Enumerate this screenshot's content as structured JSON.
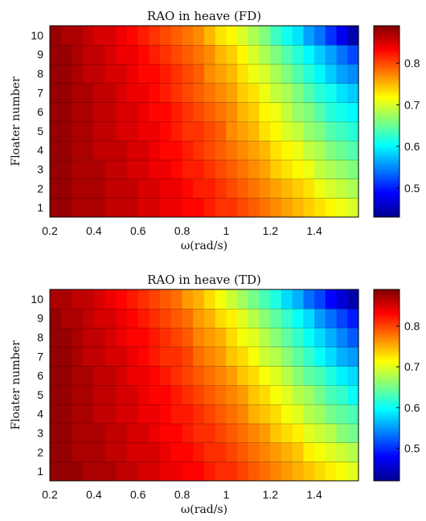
{
  "chart_data": [
    {
      "type": "heatmap",
      "title": "RAO in heave (FD)",
      "xlabel": "ω(rad/s)",
      "ylabel": "Floater number",
      "xlim": [
        0.2,
        1.6
      ],
      "ylim": [
        0.5,
        10.5
      ],
      "xticks": [
        0.2,
        0.4,
        0.6,
        0.8,
        1,
        1.2,
        1.4
      ],
      "xtick_labels": [
        "0.2",
        "0.4",
        "0.6",
        "0.8",
        "1",
        "1.2",
        "1.4"
      ],
      "y_categories": [
        "1",
        "2",
        "3",
        "4",
        "5",
        "6",
        "7",
        "8",
        "9",
        "10"
      ],
      "colorbar": {
        "range": [
          0.43,
          0.89
        ],
        "ticks": [
          0.5,
          0.6,
          0.7,
          0.8
        ],
        "tick_labels": [
          "0.5",
          "0.6",
          "0.7",
          "0.8"
        ],
        "colormap": "jet"
      },
      "x": [
        0.2,
        0.25,
        0.3,
        0.35,
        0.4,
        0.45,
        0.5,
        0.55,
        0.6,
        0.65,
        0.7,
        0.75,
        0.8,
        0.85,
        0.9,
        0.95,
        1.0,
        1.05,
        1.1,
        1.15,
        1.2,
        1.25,
        1.3,
        1.35,
        1.4,
        1.45,
        1.5,
        1.55
      ],
      "rows": [
        {
          "floater": "1",
          "values": [
            0.88,
            0.88,
            0.87,
            0.87,
            0.87,
            0.86,
            0.86,
            0.86,
            0.85,
            0.85,
            0.84,
            0.84,
            0.83,
            0.83,
            0.82,
            0.81,
            0.81,
            0.8,
            0.79,
            0.78,
            0.77,
            0.76,
            0.75,
            0.74,
            0.73,
            0.72,
            0.71,
            0.7
          ]
        },
        {
          "floater": "2",
          "values": [
            0.88,
            0.88,
            0.87,
            0.87,
            0.87,
            0.86,
            0.86,
            0.86,
            0.85,
            0.85,
            0.84,
            0.84,
            0.83,
            0.82,
            0.82,
            0.81,
            0.8,
            0.79,
            0.78,
            0.77,
            0.76,
            0.75,
            0.74,
            0.73,
            0.71,
            0.7,
            0.69,
            0.68
          ]
        },
        {
          "floater": "3",
          "values": [
            0.88,
            0.88,
            0.87,
            0.87,
            0.87,
            0.86,
            0.86,
            0.85,
            0.85,
            0.84,
            0.84,
            0.83,
            0.82,
            0.82,
            0.81,
            0.8,
            0.79,
            0.78,
            0.77,
            0.76,
            0.74,
            0.73,
            0.72,
            0.71,
            0.69,
            0.68,
            0.67,
            0.66
          ]
        },
        {
          "floater": "4",
          "values": [
            0.88,
            0.88,
            0.87,
            0.87,
            0.86,
            0.86,
            0.86,
            0.85,
            0.85,
            0.84,
            0.83,
            0.83,
            0.82,
            0.81,
            0.8,
            0.79,
            0.78,
            0.77,
            0.76,
            0.75,
            0.73,
            0.72,
            0.71,
            0.69,
            0.68,
            0.66,
            0.65,
            0.64
          ]
        },
        {
          "floater": "5",
          "values": [
            0.88,
            0.88,
            0.87,
            0.87,
            0.86,
            0.86,
            0.85,
            0.85,
            0.84,
            0.84,
            0.83,
            0.82,
            0.81,
            0.81,
            0.8,
            0.79,
            0.77,
            0.76,
            0.75,
            0.73,
            0.72,
            0.7,
            0.69,
            0.67,
            0.66,
            0.64,
            0.63,
            0.62
          ]
        },
        {
          "floater": "6",
          "values": [
            0.88,
            0.88,
            0.87,
            0.87,
            0.86,
            0.86,
            0.85,
            0.85,
            0.84,
            0.83,
            0.83,
            0.82,
            0.81,
            0.8,
            0.79,
            0.78,
            0.77,
            0.75,
            0.74,
            0.72,
            0.71,
            0.69,
            0.67,
            0.66,
            0.64,
            0.62,
            0.61,
            0.6
          ]
        },
        {
          "floater": "7",
          "values": [
            0.88,
            0.88,
            0.87,
            0.87,
            0.86,
            0.86,
            0.85,
            0.84,
            0.84,
            0.83,
            0.82,
            0.81,
            0.8,
            0.79,
            0.78,
            0.77,
            0.76,
            0.74,
            0.73,
            0.71,
            0.69,
            0.68,
            0.66,
            0.64,
            0.62,
            0.61,
            0.59,
            0.58
          ]
        },
        {
          "floater": "8",
          "values": [
            0.88,
            0.88,
            0.87,
            0.86,
            0.86,
            0.85,
            0.85,
            0.84,
            0.83,
            0.83,
            0.82,
            0.81,
            0.8,
            0.79,
            0.77,
            0.76,
            0.75,
            0.73,
            0.71,
            0.7,
            0.68,
            0.66,
            0.64,
            0.62,
            0.6,
            0.58,
            0.56,
            0.55
          ]
        },
        {
          "floater": "9",
          "values": [
            0.88,
            0.88,
            0.87,
            0.86,
            0.86,
            0.85,
            0.84,
            0.84,
            0.83,
            0.82,
            0.81,
            0.8,
            0.79,
            0.78,
            0.77,
            0.75,
            0.74,
            0.72,
            0.7,
            0.68,
            0.66,
            0.64,
            0.62,
            0.6,
            0.58,
            0.56,
            0.54,
            0.52
          ]
        },
        {
          "floater": "10",
          "values": [
            0.88,
            0.87,
            0.87,
            0.86,
            0.85,
            0.85,
            0.84,
            0.83,
            0.82,
            0.81,
            0.8,
            0.79,
            0.78,
            0.77,
            0.75,
            0.73,
            0.72,
            0.7,
            0.68,
            0.66,
            0.63,
            0.61,
            0.59,
            0.56,
            0.54,
            0.51,
            0.48,
            0.45
          ]
        }
      ]
    },
    {
      "type": "heatmap",
      "title": "RAO in heave (TD)",
      "xlabel": "ω(rad/s)",
      "ylabel": "Floater number",
      "xlim": [
        0.2,
        1.6
      ],
      "ylim": [
        0.5,
        10.5
      ],
      "xticks": [
        0.2,
        0.4,
        0.6,
        0.8,
        1,
        1.2,
        1.4
      ],
      "xtick_labels": [
        "0.2",
        "0.4",
        "0.6",
        "0.8",
        "1",
        "1.2",
        "1.4"
      ],
      "y_categories": [
        "1",
        "2",
        "3",
        "4",
        "5",
        "6",
        "7",
        "8",
        "9",
        "10"
      ],
      "colorbar": {
        "range": [
          0.42,
          0.89
        ],
        "ticks": [
          0.5,
          0.6,
          0.7,
          0.8
        ],
        "tick_labels": [
          "0.5",
          "0.6",
          "0.7",
          "0.8"
        ],
        "colormap": "jet"
      },
      "x": [
        0.2,
        0.25,
        0.3,
        0.35,
        0.4,
        0.45,
        0.5,
        0.55,
        0.6,
        0.65,
        0.7,
        0.75,
        0.8,
        0.85,
        0.9,
        0.95,
        1.0,
        1.05,
        1.1,
        1.15,
        1.2,
        1.25,
        1.3,
        1.35,
        1.4,
        1.45,
        1.5,
        1.55
      ],
      "rows": [
        {
          "floater": "1",
          "values": [
            0.88,
            0.88,
            0.88,
            0.87,
            0.87,
            0.87,
            0.86,
            0.86,
            0.85,
            0.85,
            0.84,
            0.84,
            0.83,
            0.83,
            0.82,
            0.81,
            0.81,
            0.8,
            0.79,
            0.78,
            0.77,
            0.76,
            0.75,
            0.74,
            0.73,
            0.72,
            0.71,
            0.7
          ]
        },
        {
          "floater": "2",
          "values": [
            0.88,
            0.88,
            0.87,
            0.87,
            0.87,
            0.86,
            0.86,
            0.85,
            0.85,
            0.85,
            0.84,
            0.83,
            0.83,
            0.82,
            0.81,
            0.81,
            0.8,
            0.79,
            0.78,
            0.77,
            0.76,
            0.75,
            0.74,
            0.72,
            0.71,
            0.7,
            0.69,
            0.68
          ]
        },
        {
          "floater": "3",
          "values": [
            0.88,
            0.88,
            0.87,
            0.87,
            0.87,
            0.86,
            0.86,
            0.85,
            0.85,
            0.84,
            0.83,
            0.83,
            0.82,
            0.81,
            0.81,
            0.8,
            0.79,
            0.78,
            0.77,
            0.76,
            0.74,
            0.73,
            0.72,
            0.7,
            0.69,
            0.68,
            0.66,
            0.65
          ]
        },
        {
          "floater": "4",
          "values": [
            0.88,
            0.88,
            0.87,
            0.87,
            0.86,
            0.86,
            0.85,
            0.85,
            0.84,
            0.84,
            0.83,
            0.82,
            0.82,
            0.81,
            0.8,
            0.79,
            0.78,
            0.77,
            0.75,
            0.74,
            0.73,
            0.71,
            0.7,
            0.68,
            0.67,
            0.65,
            0.64,
            0.63
          ]
        },
        {
          "floater": "5",
          "values": [
            0.88,
            0.88,
            0.87,
            0.87,
            0.86,
            0.86,
            0.85,
            0.85,
            0.84,
            0.83,
            0.83,
            0.82,
            0.81,
            0.8,
            0.79,
            0.78,
            0.77,
            0.76,
            0.74,
            0.73,
            0.71,
            0.7,
            0.68,
            0.67,
            0.65,
            0.63,
            0.62,
            0.6
          ]
        },
        {
          "floater": "6",
          "values": [
            0.88,
            0.88,
            0.87,
            0.87,
            0.86,
            0.86,
            0.85,
            0.84,
            0.84,
            0.83,
            0.82,
            0.81,
            0.8,
            0.79,
            0.78,
            0.77,
            0.76,
            0.74,
            0.73,
            0.71,
            0.7,
            0.68,
            0.66,
            0.64,
            0.63,
            0.61,
            0.59,
            0.58
          ]
        },
        {
          "floater": "7",
          "values": [
            0.88,
            0.88,
            0.87,
            0.86,
            0.86,
            0.85,
            0.85,
            0.84,
            0.83,
            0.82,
            0.81,
            0.81,
            0.8,
            0.78,
            0.77,
            0.76,
            0.74,
            0.73,
            0.71,
            0.69,
            0.68,
            0.66,
            0.64,
            0.62,
            0.6,
            0.58,
            0.56,
            0.55
          ]
        },
        {
          "floater": "8",
          "values": [
            0.88,
            0.88,
            0.87,
            0.86,
            0.86,
            0.85,
            0.84,
            0.83,
            0.83,
            0.82,
            0.81,
            0.8,
            0.79,
            0.77,
            0.76,
            0.75,
            0.73,
            0.71,
            0.7,
            0.68,
            0.66,
            0.64,
            0.62,
            0.6,
            0.58,
            0.56,
            0.54,
            0.52
          ]
        },
        {
          "floater": "9",
          "values": [
            0.88,
            0.87,
            0.87,
            0.86,
            0.85,
            0.85,
            0.84,
            0.83,
            0.82,
            0.81,
            0.8,
            0.79,
            0.78,
            0.76,
            0.75,
            0.73,
            0.72,
            0.7,
            0.68,
            0.66,
            0.64,
            0.62,
            0.6,
            0.58,
            0.55,
            0.53,
            0.51,
            0.49
          ]
        },
        {
          "floater": "10",
          "values": [
            0.87,
            0.87,
            0.86,
            0.86,
            0.85,
            0.84,
            0.83,
            0.82,
            0.81,
            0.8,
            0.79,
            0.78,
            0.76,
            0.75,
            0.73,
            0.71,
            0.69,
            0.67,
            0.65,
            0.63,
            0.61,
            0.58,
            0.56,
            0.53,
            0.51,
            0.48,
            0.46,
            0.44
          ]
        }
      ]
    }
  ]
}
